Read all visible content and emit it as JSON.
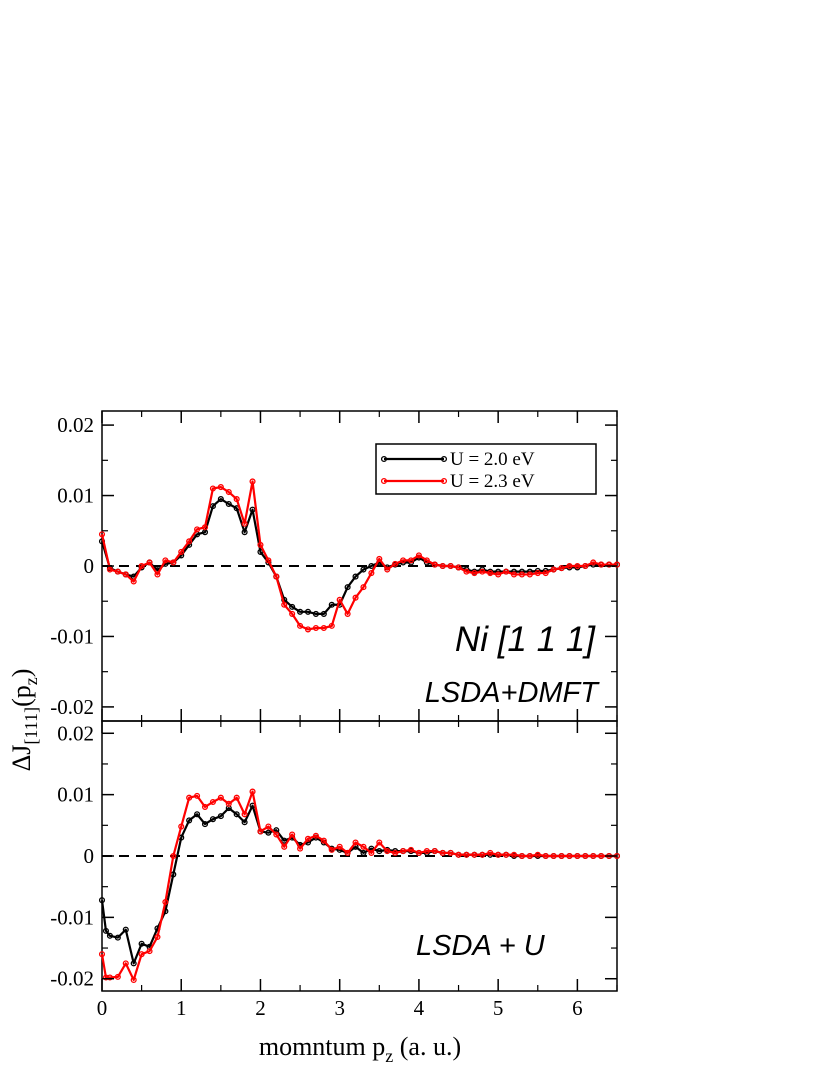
{
  "chart_data": [
    {
      "type": "line",
      "panel": "top",
      "annotations": [
        "Ni [1 1 1]",
        "LSDA+DMFT"
      ],
      "xlim": [
        0,
        6.5
      ],
      "ylim": [
        -0.022,
        0.022
      ],
      "y_ticks": [
        -0.02,
        -0.01,
        0,
        0.01,
        0.02
      ],
      "y_tick_labels": [
        "-0.02",
        "-0.01",
        "0",
        "0.01",
        "0.02"
      ],
      "zero_line": "dashed",
      "legend": {
        "position": "top-right"
      },
      "series": [
        {
          "name": "U = 2.0 eV",
          "color": "#000000",
          "x": [
            0,
            0.1,
            0.2,
            0.3,
            0.4,
            0.5,
            0.6,
            0.7,
            0.8,
            0.9,
            1.0,
            1.1,
            1.2,
            1.3,
            1.4,
            1.5,
            1.6,
            1.7,
            1.8,
            1.9,
            2.0,
            2.1,
            2.2,
            2.3,
            2.4,
            2.5,
            2.6,
            2.7,
            2.8,
            2.9,
            3.0,
            3.1,
            3.2,
            3.3,
            3.4,
            3.5,
            3.6,
            3.7,
            3.8,
            3.9,
            4.0,
            4.1,
            4.2,
            4.3,
            4.4,
            4.5,
            4.6,
            4.7,
            4.8,
            4.9,
            5.0,
            5.1,
            5.2,
            5.3,
            5.4,
            5.5,
            5.6,
            5.7,
            5.8,
            5.9,
            6.0,
            6.1,
            6.2,
            6.3,
            6.4,
            6.5
          ],
          "y": [
            0.0035,
            -0.0003,
            -0.0008,
            -0.0012,
            -0.0015,
            -0.0002,
            0.0005,
            -0.0006,
            0.0003,
            0.0005,
            0.0015,
            0.003,
            0.0045,
            0.0048,
            0.0085,
            0.0095,
            0.0088,
            0.0082,
            0.0048,
            0.008,
            0.002,
            0.0005,
            -0.0015,
            -0.0048,
            -0.0058,
            -0.0065,
            -0.0065,
            -0.0068,
            -0.0068,
            -0.0055,
            -0.0055,
            -0.003,
            -0.0015,
            -0.0005,
            0.0,
            0.0005,
            -0.0002,
            0.0002,
            0.0005,
            0.0005,
            0.0012,
            0.0005,
            0.0002,
            0.0,
            0.0,
            -0.0002,
            -0.0005,
            -0.0008,
            -0.0005,
            -0.0008,
            -0.0008,
            -0.0008,
            -0.0008,
            -0.0008,
            -0.0008,
            -0.0007,
            -0.0007,
            -0.0005,
            -0.0003,
            -0.0002,
            -0.0002,
            0.0,
            0.0002,
            0.0002,
            0.0002,
            0.0002
          ]
        },
        {
          "name": "U = 2.3 eV",
          "color": "#ff0000",
          "x": [
            0,
            0.1,
            0.2,
            0.3,
            0.4,
            0.5,
            0.6,
            0.7,
            0.8,
            0.9,
            1.0,
            1.1,
            1.2,
            1.3,
            1.4,
            1.5,
            1.6,
            1.7,
            1.8,
            1.9,
            2.0,
            2.1,
            2.2,
            2.3,
            2.4,
            2.5,
            2.6,
            2.7,
            2.8,
            2.9,
            3.0,
            3.1,
            3.2,
            3.3,
            3.4,
            3.5,
            3.6,
            3.7,
            3.8,
            3.9,
            4.0,
            4.1,
            4.2,
            4.3,
            4.4,
            4.5,
            4.6,
            4.7,
            4.8,
            4.9,
            5.0,
            5.1,
            5.2,
            5.3,
            5.4,
            5.5,
            5.6,
            5.7,
            5.8,
            5.9,
            6.0,
            6.1,
            6.2,
            6.3,
            6.4,
            6.5
          ],
          "y": [
            0.0045,
            -0.0005,
            -0.0008,
            -0.0012,
            -0.0022,
            0.0,
            0.0005,
            -0.0012,
            0.0008,
            0.0005,
            0.002,
            0.0035,
            0.0052,
            0.0055,
            0.011,
            0.0112,
            0.0105,
            0.0095,
            0.006,
            0.012,
            0.003,
            0.0008,
            -0.0015,
            -0.0055,
            -0.0068,
            -0.0085,
            -0.009,
            -0.0088,
            -0.0088,
            -0.0085,
            -0.0048,
            -0.0068,
            -0.0045,
            -0.003,
            -0.001,
            0.001,
            -0.0005,
            0.0003,
            0.0008,
            0.0008,
            0.0015,
            0.0008,
            0.0002,
            0.0,
            0.0,
            -0.0002,
            -0.0008,
            -0.001,
            -0.0008,
            -0.001,
            -0.0012,
            -0.0008,
            -0.0012,
            -0.0012,
            -0.0012,
            -0.001,
            -0.001,
            -0.0005,
            -0.0003,
            0.0,
            0.0,
            0.0,
            0.0005,
            0.0002,
            0.0002,
            0.0002
          ]
        }
      ]
    },
    {
      "type": "line",
      "panel": "bottom",
      "annotations": [
        "LSDA + U"
      ],
      "xlim": [
        0,
        6.5
      ],
      "ylim": [
        -0.022,
        0.022
      ],
      "y_ticks": [
        -0.02,
        -0.01,
        0,
        0.01,
        0.02
      ],
      "y_tick_labels": [
        "-0.02",
        "-0.01",
        "0",
        "0.01",
        "0.02"
      ],
      "zero_line": "dashed",
      "series": [
        {
          "name": "U = 2.0 eV",
          "color": "#000000",
          "x": [
            0,
            0.05,
            0.1,
            0.2,
            0.3,
            0.4,
            0.5,
            0.6,
            0.7,
            0.8,
            0.9,
            1.0,
            1.1,
            1.2,
            1.3,
            1.4,
            1.5,
            1.6,
            1.7,
            1.8,
            1.9,
            2.0,
            2.1,
            2.2,
            2.3,
            2.4,
            2.5,
            2.6,
            2.7,
            2.8,
            2.9,
            3.0,
            3.1,
            3.2,
            3.3,
            3.4,
            3.5,
            3.6,
            3.7,
            3.8,
            3.9,
            4.0,
            4.1,
            4.2,
            4.3,
            4.4,
            4.5,
            4.6,
            4.7,
            4.8,
            4.9,
            5.0,
            5.1,
            5.2,
            5.3,
            5.4,
            5.5,
            5.6,
            5.7,
            5.8,
            5.9,
            6.0,
            6.1,
            6.2,
            6.3,
            6.4,
            6.5
          ],
          "y": [
            -0.0072,
            -0.0122,
            -0.013,
            -0.0133,
            -0.012,
            -0.0175,
            -0.0143,
            -0.0148,
            -0.0118,
            -0.009,
            -0.003,
            0.003,
            0.0058,
            0.0068,
            0.0052,
            0.006,
            0.0065,
            0.0078,
            0.0068,
            0.0055,
            0.0082,
            0.004,
            0.0038,
            0.0042,
            0.0025,
            0.003,
            0.0018,
            0.0022,
            0.003,
            0.0022,
            0.0012,
            0.001,
            0.0005,
            0.0015,
            0.0005,
            0.0012,
            0.0008,
            0.001,
            0.0008,
            0.0008,
            0.0008,
            0.0005,
            0.0005,
            0.0008,
            0.0005,
            0.0005,
            0.0002,
            0.0002,
            0.0002,
            0.0002,
            0.0002,
            0.0002,
            0.0002,
            0.0,
            0.0,
            0.0,
            0.0,
            0.0,
            0.0,
            0.0,
            0.0,
            0.0,
            0.0,
            0.0,
            0.0,
            0.0,
            0.0
          ]
        },
        {
          "name": "U = 2.3 eV",
          "color": "#ff0000",
          "x": [
            0,
            0.05,
            0.1,
            0.2,
            0.3,
            0.4,
            0.5,
            0.6,
            0.7,
            0.8,
            0.9,
            1.0,
            1.1,
            1.2,
            1.3,
            1.4,
            1.5,
            1.6,
            1.7,
            1.8,
            1.9,
            2.0,
            2.1,
            2.2,
            2.3,
            2.4,
            2.5,
            2.6,
            2.7,
            2.8,
            2.9,
            3.0,
            3.1,
            3.2,
            3.3,
            3.4,
            3.5,
            3.6,
            3.7,
            3.8,
            3.9,
            4.0,
            4.1,
            4.2,
            4.3,
            4.4,
            4.5,
            4.6,
            4.7,
            4.8,
            4.9,
            5.0,
            5.1,
            5.2,
            5.3,
            5.4,
            5.5,
            5.6,
            5.7,
            5.8,
            5.9,
            6.0,
            6.1,
            6.2,
            6.3,
            6.4,
            6.5
          ],
          "y": [
            -0.016,
            -0.0198,
            -0.0198,
            -0.0197,
            -0.0175,
            -0.0202,
            -0.016,
            -0.0155,
            -0.0132,
            -0.0075,
            0.0,
            0.0048,
            0.0095,
            0.0098,
            0.008,
            0.0088,
            0.0095,
            0.0085,
            0.0095,
            0.0068,
            0.0105,
            0.004,
            0.0048,
            0.0035,
            0.0015,
            0.0035,
            0.0012,
            0.0028,
            0.0033,
            0.0025,
            0.001,
            0.0015,
            0.0005,
            0.0022,
            0.0015,
            0.0005,
            0.0022,
            0.0008,
            0.0005,
            0.0008,
            0.001,
            0.0005,
            0.0008,
            0.0008,
            0.0005,
            0.0005,
            0.0002,
            0.0002,
            0.0002,
            0.0002,
            0.0005,
            0.0002,
            0.0002,
            0.0002,
            0.0,
            0.0,
            0.0002,
            0.0,
            0.0,
            0.0,
            0.0,
            0.0,
            0.0,
            0.0,
            0.0,
            0.0,
            0.0
          ]
        }
      ]
    }
  ],
  "x_ticks": [
    0,
    1,
    2,
    3,
    4,
    5,
    6
  ],
  "x_tick_labels": [
    "0",
    "1",
    "2",
    "3",
    "4",
    "5",
    "6"
  ],
  "xlabel": {
    "main": "momntum p",
    "sub": "z",
    "tail": " (a. u.)"
  },
  "ylabel": {
    "main": "ΔJ",
    "sub1": "[111]",
    "mid": "(p",
    "sub2": "z",
    "tail": ")"
  }
}
